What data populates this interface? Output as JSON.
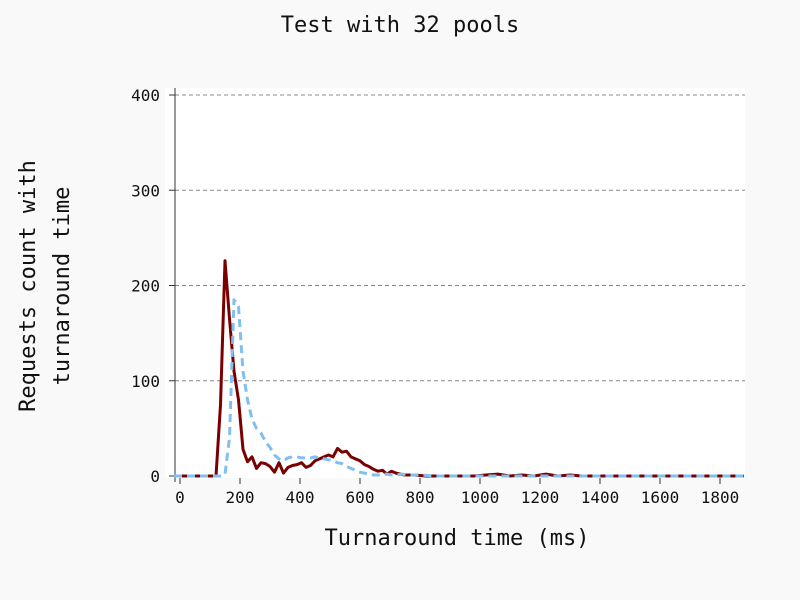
{
  "chart_data": {
    "type": "line",
    "title": "Test with 32 pools",
    "xlabel": "Turnaround time (ms)",
    "ylabel_lines": [
      "Requests count with",
      "turnaround time"
    ],
    "xlim": [
      -20,
      1920
    ],
    "ylim": [
      0,
      400
    ],
    "xticks": [
      0,
      200,
      400,
      600,
      800,
      1000,
      1200,
      1400,
      1600,
      1800
    ],
    "yticks": [
      0,
      100,
      200,
      300,
      400
    ],
    "grid": "y-dashed",
    "series": [
      {
        "color": "#7a0000",
        "style": "solid",
        "points": [
          [
            -20,
            0
          ],
          [
            0,
            0
          ],
          [
            40,
            0
          ],
          [
            80,
            0
          ],
          [
            120,
            0
          ],
          [
            135,
            75
          ],
          [
            150,
            226
          ],
          [
            165,
            165
          ],
          [
            180,
            110
          ],
          [
            195,
            80
          ],
          [
            210,
            28
          ],
          [
            225,
            15
          ],
          [
            240,
            20
          ],
          [
            255,
            8
          ],
          [
            270,
            14
          ],
          [
            285,
            13
          ],
          [
            300,
            10
          ],
          [
            315,
            4
          ],
          [
            330,
            14
          ],
          [
            345,
            3
          ],
          [
            360,
            9
          ],
          [
            375,
            11
          ],
          [
            390,
            12
          ],
          [
            405,
            14
          ],
          [
            420,
            9
          ],
          [
            435,
            11
          ],
          [
            450,
            16
          ],
          [
            465,
            18
          ],
          [
            480,
            20
          ],
          [
            495,
            22
          ],
          [
            510,
            20
          ],
          [
            525,
            29
          ],
          [
            540,
            25
          ],
          [
            555,
            26
          ],
          [
            570,
            20
          ],
          [
            585,
            18
          ],
          [
            600,
            16
          ],
          [
            615,
            12
          ],
          [
            630,
            10
          ],
          [
            645,
            7
          ],
          [
            660,
            5
          ],
          [
            675,
            6
          ],
          [
            690,
            2
          ],
          [
            705,
            5
          ],
          [
            720,
            3
          ],
          [
            735,
            2
          ],
          [
            750,
            1
          ],
          [
            780,
            1
          ],
          [
            820,
            0
          ],
          [
            860,
            0
          ],
          [
            900,
            0
          ],
          [
            940,
            0
          ],
          [
            980,
            0
          ],
          [
            1020,
            1
          ],
          [
            1060,
            2
          ],
          [
            1100,
            0
          ],
          [
            1140,
            1
          ],
          [
            1180,
            0
          ],
          [
            1220,
            2
          ],
          [
            1260,
            0
          ],
          [
            1300,
            1
          ],
          [
            1340,
            0
          ],
          [
            1380,
            0
          ],
          [
            1420,
            0
          ],
          [
            1460,
            0
          ],
          [
            1500,
            0
          ],
          [
            1540,
            0
          ],
          [
            1580,
            0
          ],
          [
            1620,
            0
          ],
          [
            1660,
            0
          ],
          [
            1700,
            0
          ],
          [
            1740,
            0
          ],
          [
            1780,
            0
          ],
          [
            1820,
            0
          ],
          [
            1860,
            0
          ],
          [
            1880,
            0
          ]
        ]
      },
      {
        "color": "#80c0f0",
        "style": "dashed",
        "points": [
          [
            -20,
            0
          ],
          [
            40,
            0
          ],
          [
            100,
            0
          ],
          [
            140,
            0
          ],
          [
            150,
            2
          ],
          [
            165,
            40
          ],
          [
            180,
            185
          ],
          [
            195,
            178
          ],
          [
            210,
            110
          ],
          [
            225,
            80
          ],
          [
            240,
            60
          ],
          [
            255,
            50
          ],
          [
            270,
            45
          ],
          [
            285,
            36
          ],
          [
            300,
            30
          ],
          [
            315,
            22
          ],
          [
            330,
            18
          ],
          [
            345,
            16
          ],
          [
            360,
            19
          ],
          [
            375,
            20
          ],
          [
            390,
            20
          ],
          [
            405,
            19
          ],
          [
            420,
            19
          ],
          [
            435,
            19
          ],
          [
            450,
            20
          ],
          [
            465,
            19
          ],
          [
            480,
            18
          ],
          [
            495,
            17
          ],
          [
            510,
            16
          ],
          [
            525,
            14
          ],
          [
            540,
            13
          ],
          [
            555,
            10
          ],
          [
            570,
            8
          ],
          [
            585,
            6
          ],
          [
            600,
            4
          ],
          [
            615,
            3
          ],
          [
            630,
            2
          ],
          [
            645,
            1
          ],
          [
            660,
            1
          ],
          [
            675,
            2
          ],
          [
            690,
            2
          ],
          [
            705,
            1
          ],
          [
            720,
            1
          ],
          [
            740,
            2
          ],
          [
            760,
            1
          ],
          [
            800,
            1
          ],
          [
            850,
            0
          ],
          [
            900,
            0
          ],
          [
            950,
            0
          ],
          [
            1000,
            0
          ],
          [
            1100,
            0
          ],
          [
            1200,
            0
          ],
          [
            1300,
            0
          ],
          [
            1400,
            0
          ],
          [
            1500,
            0
          ],
          [
            1600,
            0
          ],
          [
            1700,
            0
          ],
          [
            1800,
            0
          ],
          [
            1880,
            0
          ]
        ]
      }
    ]
  }
}
